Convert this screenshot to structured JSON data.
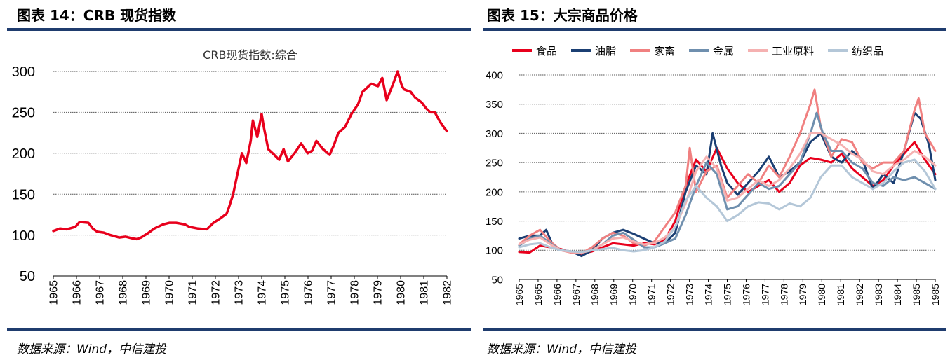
{
  "figures": [
    {
      "title": "图表 14：CRB 现货指数",
      "source": "数据来源：Wind，中信建投"
    },
    {
      "title": "图表 15：大宗商品价格",
      "source": "数据来源：Wind，中信建投"
    }
  ],
  "chart_data": [
    {
      "type": "line",
      "title": "CRB现货指数:综合",
      "xlabel": "",
      "ylabel": "",
      "ylim": [
        50,
        300
      ],
      "yticks": [
        "50",
        "100",
        "150",
        "200",
        "250",
        "300"
      ],
      "xlim": [
        1965.0,
        1982.95
      ],
      "xticks": [
        "1965",
        "1966",
        "1967",
        "1968",
        "1969",
        "1970",
        "1971",
        "1972",
        "1973",
        "1974",
        "1975",
        "1976",
        "1977",
        "1978",
        "1979",
        "1980",
        "1981",
        "1982"
      ],
      "grid": true,
      "series": [
        {
          "name": "CRB现货指数:综合",
          "color": "#e8001c",
          "x": [
            1965.0,
            1965.3,
            1965.6,
            1966.0,
            1966.2,
            1966.6,
            1966.8,
            1967.0,
            1967.3,
            1967.6,
            1968.0,
            1968.3,
            1968.6,
            1968.8,
            1969.0,
            1969.3,
            1969.6,
            1970.0,
            1970.3,
            1970.6,
            1971.0,
            1971.2,
            1971.6,
            1972.0,
            1972.3,
            1972.6,
            1972.9,
            1973.0,
            1973.2,
            1973.4,
            1973.6,
            1973.8,
            1974.0,
            1974.1,
            1974.3,
            1974.5,
            1974.6,
            1974.8,
            1975.0,
            1975.3,
            1975.5,
            1975.7,
            1976.0,
            1976.3,
            1976.6,
            1976.8,
            1977.0,
            1977.3,
            1977.6,
            1977.8,
            1978.0,
            1978.3,
            1978.6,
            1978.9,
            1979.1,
            1979.3,
            1979.5,
            1979.8,
            1980.0,
            1980.2,
            1980.5,
            1980.7,
            1980.9,
            1981.0,
            1981.3,
            1981.5,
            1981.8,
            1982.0,
            1982.2,
            1982.4,
            1982.6,
            1982.8,
            1982.95
          ],
          "y": [
            105,
            108,
            107,
            110,
            116,
            115,
            108,
            104,
            103,
            100,
            97,
            98,
            96,
            95,
            97,
            102,
            108,
            113,
            115,
            115,
            113,
            110,
            108,
            107,
            115,
            120,
            126,
            133,
            150,
            175,
            200,
            188,
            215,
            240,
            220,
            248,
            232,
            205,
            200,
            192,
            205,
            190,
            200,
            212,
            200,
            203,
            215,
            205,
            198,
            210,
            225,
            232,
            248,
            260,
            275,
            280,
            285,
            282,
            292,
            265,
            285,
            300,
            282,
            278,
            275,
            268,
            262,
            255,
            250,
            250,
            240,
            232,
            227
          ]
        }
      ]
    },
    {
      "type": "line",
      "title": "",
      "xlabel": "",
      "ylabel": "",
      "ylim": [
        50,
        400
      ],
      "yticks": [
        "50",
        "100",
        "150",
        "200",
        "250",
        "300",
        "350",
        "400"
      ],
      "xlim": [
        1965.0,
        1985.0
      ],
      "xticks": [
        "1965",
        "1965",
        "1966",
        "1967",
        "1968",
        "1969",
        "1970",
        "1971",
        "1972",
        "1973",
        "1974",
        "1975",
        "1976",
        "1977",
        "1978",
        "1979",
        "1980",
        "1981",
        "1982",
        "1983",
        "1984",
        "1985",
        "1985"
      ],
      "grid": true,
      "legend": "top",
      "series": [
        {
          "name": "食品",
          "color": "#e8001c",
          "x": [
            1965.0,
            1965.5,
            1966.0,
            1966.5,
            1967.0,
            1967.5,
            1968.0,
            1968.5,
            1969.0,
            1969.5,
            1970.0,
            1970.5,
            1971.0,
            1971.5,
            1972.0,
            1972.5,
            1973.0,
            1973.5,
            1974.0,
            1974.5,
            1975.0,
            1975.5,
            1976.0,
            1976.5,
            1977.0,
            1977.5,
            1978.0,
            1978.5,
            1979.0,
            1979.5,
            1980.0,
            1980.5,
            1981.0,
            1981.5,
            1982.0,
            1982.5,
            1983.0,
            1983.5,
            1984.0,
            1984.5,
            1985.0
          ],
          "y": [
            97,
            96,
            108,
            105,
            102,
            96,
            94,
            98,
            105,
            112,
            110,
            108,
            112,
            110,
            118,
            150,
            210,
            255,
            235,
            275,
            240,
            215,
            200,
            210,
            220,
            200,
            215,
            245,
            258,
            255,
            250,
            265,
            240,
            225,
            210,
            220,
            245,
            265,
            285,
            255,
            230
          ]
        },
        {
          "name": "油脂",
          "color": "#1b3f73",
          "x": [
            1965.0,
            1965.5,
            1966.0,
            1966.3,
            1966.6,
            1967.0,
            1967.5,
            1968.0,
            1968.5,
            1969.0,
            1969.5,
            1970.0,
            1970.5,
            1971.0,
            1971.5,
            1972.0,
            1972.5,
            1973.0,
            1973.5,
            1974.0,
            1974.3,
            1974.7,
            1975.0,
            1975.5,
            1976.0,
            1976.5,
            1977.0,
            1977.5,
            1978.0,
            1978.5,
            1979.0,
            1979.5,
            1980.0,
            1980.5,
            1981.0,
            1981.5,
            1982.0,
            1982.5,
            1983.0,
            1983.5,
            1984.0,
            1984.3,
            1984.7,
            1985.0
          ],
          "y": [
            120,
            125,
            125,
            135,
            110,
            100,
            98,
            90,
            100,
            120,
            130,
            135,
            128,
            120,
            112,
            112,
            130,
            200,
            245,
            230,
            300,
            245,
            215,
            195,
            215,
            235,
            260,
            225,
            235,
            250,
            285,
            300,
            260,
            250,
            270,
            255,
            205,
            230,
            215,
            270,
            335,
            325,
            280,
            220
          ]
        },
        {
          "name": "家畜",
          "color": "#f08080",
          "x": [
            1965.0,
            1965.5,
            1966.0,
            1966.5,
            1967.0,
            1967.5,
            1968.0,
            1968.5,
            1969.0,
            1969.5,
            1970.0,
            1970.5,
            1971.0,
            1971.5,
            1972.0,
            1972.5,
            1973.0,
            1973.2,
            1973.5,
            1974.0,
            1974.5,
            1975.0,
            1975.5,
            1976.0,
            1976.5,
            1977.0,
            1977.5,
            1978.0,
            1978.5,
            1979.0,
            1979.2,
            1979.5,
            1980.0,
            1980.5,
            1981.0,
            1981.5,
            1982.0,
            1982.5,
            1983.0,
            1983.5,
            1984.0,
            1984.2,
            1984.5,
            1985.0
          ],
          "y": [
            110,
            125,
            135,
            115,
            100,
            96,
            95,
            105,
            120,
            130,
            125,
            112,
            108,
            115,
            140,
            165,
            210,
            275,
            200,
            235,
            245,
            190,
            210,
            230,
            215,
            245,
            225,
            260,
            300,
            350,
            375,
            310,
            260,
            290,
            285,
            250,
            240,
            250,
            250,
            270,
            340,
            360,
            300,
            270
          ]
        },
        {
          "name": "金属",
          "color": "#6f8fae",
          "x": [
            1965.0,
            1965.5,
            1966.0,
            1966.5,
            1967.0,
            1967.5,
            1968.0,
            1968.5,
            1969.0,
            1969.5,
            1970.0,
            1970.5,
            1971.0,
            1971.5,
            1972.0,
            1972.5,
            1973.0,
            1973.5,
            1974.0,
            1974.5,
            1975.0,
            1975.5,
            1976.0,
            1976.5,
            1977.0,
            1977.5,
            1978.0,
            1978.5,
            1979.0,
            1979.3,
            1979.6,
            1980.0,
            1980.5,
            1981.0,
            1981.5,
            1982.0,
            1982.5,
            1983.0,
            1983.5,
            1984.0,
            1984.5,
            1985.0
          ],
          "y": [
            108,
            120,
            125,
            112,
            100,
            98,
            96,
            100,
            110,
            125,
            130,
            118,
            105,
            105,
            112,
            120,
            160,
            210,
            250,
            230,
            170,
            175,
            195,
            215,
            205,
            210,
            230,
            250,
            300,
            335,
            300,
            270,
            270,
            250,
            240,
            215,
            210,
            225,
            220,
            225,
            215,
            205
          ]
        },
        {
          "name": "工业原料",
          "color": "#f5b1b1",
          "x": [
            1965.0,
            1965.5,
            1966.0,
            1966.5,
            1967.0,
            1967.5,
            1968.0,
            1968.5,
            1969.0,
            1969.5,
            1970.0,
            1970.5,
            1971.0,
            1971.5,
            1972.0,
            1972.5,
            1973.0,
            1973.5,
            1974.0,
            1974.5,
            1975.0,
            1975.5,
            1976.0,
            1976.5,
            1977.0,
            1977.5,
            1978.0,
            1978.5,
            1979.0,
            1979.5,
            1980.0,
            1980.5,
            1981.0,
            1981.5,
            1982.0,
            1982.5,
            1983.0,
            1983.5,
            1984.0,
            1984.5,
            1985.0
          ],
          "y": [
            110,
            118,
            122,
            110,
            100,
            97,
            96,
            100,
            110,
            120,
            122,
            115,
            110,
            112,
            122,
            140,
            180,
            235,
            260,
            240,
            185,
            190,
            205,
            220,
            210,
            220,
            240,
            265,
            300,
            300,
            290,
            280,
            265,
            255,
            235,
            230,
            245,
            255,
            270,
            260,
            245
          ]
        },
        {
          "name": "纺织品",
          "color": "#b4c7d8",
          "x": [
            1965.0,
            1965.5,
            1966.0,
            1966.5,
            1967.0,
            1967.5,
            1968.0,
            1968.5,
            1969.0,
            1969.5,
            1970.0,
            1970.5,
            1971.0,
            1971.5,
            1972.0,
            1972.5,
            1973.0,
            1973.5,
            1974.0,
            1974.5,
            1975.0,
            1975.5,
            1976.0,
            1976.5,
            1977.0,
            1977.5,
            1978.0,
            1978.5,
            1979.0,
            1979.5,
            1980.0,
            1980.5,
            1981.0,
            1981.5,
            1982.0,
            1982.5,
            1983.0,
            1983.5,
            1984.0,
            1984.5,
            1985.0
          ],
          "y": [
            105,
            110,
            112,
            105,
            100,
            98,
            97,
            100,
            102,
            104,
            100,
            98,
            100,
            105,
            115,
            140,
            185,
            210,
            190,
            175,
            150,
            160,
            175,
            182,
            180,
            170,
            180,
            175,
            190,
            225,
            245,
            245,
            225,
            215,
            205,
            215,
            235,
            250,
            255,
            235,
            205
          ]
        }
      ]
    }
  ]
}
